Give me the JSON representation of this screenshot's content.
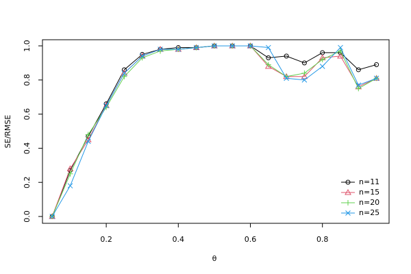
{
  "chart_data": {
    "type": "line",
    "x_label": "θ",
    "y_label": "SE/RMSE",
    "x": [
      0.05,
      0.1,
      0.15,
      0.2,
      0.25,
      0.3,
      0.35,
      0.4,
      0.45,
      0.5,
      0.55,
      0.6,
      0.65,
      0.7,
      0.75,
      0.8,
      0.85,
      0.9,
      0.95
    ],
    "series": [
      {
        "name": "n=11",
        "color": "#000000",
        "marker": "circle",
        "values": [
          0,
          0.27,
          0.47,
          0.66,
          0.86,
          0.95,
          0.98,
          0.99,
          0.99,
          1.0,
          1.0,
          1.0,
          0.93,
          0.94,
          0.9,
          0.96,
          0.96,
          0.86,
          0.89
        ]
      },
      {
        "name": "n=15",
        "color": "#DF536B",
        "marker": "triangle",
        "values": [
          0,
          0.28,
          0.45,
          0.65,
          0.84,
          0.94,
          0.98,
          0.98,
          0.99,
          1.0,
          1.0,
          1.0,
          0.88,
          0.82,
          0.82,
          0.93,
          0.94,
          0.76,
          0.81
        ]
      },
      {
        "name": "n=20",
        "color": "#61D04F",
        "marker": "plus",
        "values": [
          0,
          0.25,
          0.48,
          0.64,
          0.82,
          0.93,
          0.97,
          0.98,
          0.99,
          1.0,
          1.0,
          1.0,
          0.89,
          0.82,
          0.84,
          0.92,
          0.97,
          0.75,
          0.81
        ]
      },
      {
        "name": "n=25",
        "color": "#2297E6",
        "marker": "cross",
        "values": [
          0,
          0.18,
          0.44,
          0.65,
          0.84,
          0.94,
          0.98,
          0.98,
          0.99,
          1.0,
          1.0,
          1.0,
          0.99,
          0.81,
          0.8,
          0.88,
          0.99,
          0.77,
          0.81
        ]
      }
    ],
    "xlim": [
      0.023,
      0.985
    ],
    "ylim": [
      -0.04,
      1.036
    ],
    "xticks": [
      0.2,
      0.4,
      0.6,
      0.8
    ],
    "yticks": [
      {
        "value": 0,
        "label": "0.0"
      },
      0.2,
      0.4,
      0.6,
      0.8,
      {
        "value": 1,
        "label": "1.0"
      }
    ],
    "legend": "bottom-right"
  }
}
